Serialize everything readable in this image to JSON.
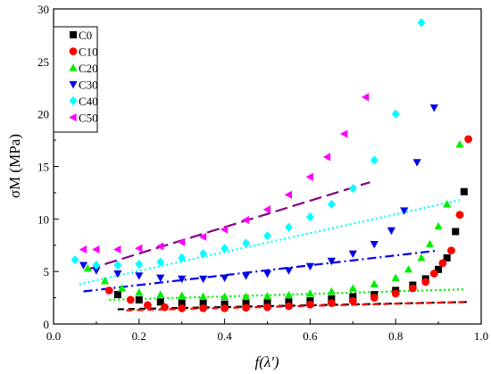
{
  "chart_data": {
    "type": "scatter",
    "xlabel": "f(λ')",
    "ylabel": "σM (MPa)",
    "xlim": [
      0.0,
      1.0
    ],
    "ylim": [
      0,
      30
    ],
    "x_ticks": [
      "0.0",
      "0.2",
      "0.4",
      "0.6",
      "0.8",
      "1.0"
    ],
    "y_ticks": [
      "0",
      "5",
      "10",
      "15",
      "20",
      "25",
      "30"
    ],
    "grid": false,
    "legend_position": "top-left",
    "series": [
      {
        "name": "C0",
        "color": "#000000",
        "marker": "square",
        "x": [
          0.15,
          0.2,
          0.25,
          0.3,
          0.35,
          0.4,
          0.45,
          0.5,
          0.55,
          0.6,
          0.65,
          0.7,
          0.75,
          0.8,
          0.84,
          0.87,
          0.9,
          0.92,
          0.94,
          0.96
        ],
        "y": [
          2.8,
          2.3,
          2.1,
          2.0,
          1.95,
          1.9,
          1.95,
          2.0,
          2.1,
          2.2,
          2.4,
          2.6,
          2.8,
          3.2,
          3.7,
          4.3,
          5.2,
          6.3,
          8.8,
          12.6
        ],
        "fit": {
          "style": "dashed",
          "x": [
            0.15,
            0.97
          ],
          "y": [
            1.4,
            2.1
          ]
        }
      },
      {
        "name": "C10",
        "color": "#ff0000",
        "marker": "circle",
        "x": [
          0.13,
          0.18,
          0.22,
          0.26,
          0.3,
          0.35,
          0.4,
          0.45,
          0.5,
          0.55,
          0.6,
          0.65,
          0.7,
          0.75,
          0.8,
          0.84,
          0.87,
          0.89,
          0.91,
          0.93,
          0.95,
          0.97
        ],
        "y": [
          3.2,
          2.3,
          1.8,
          1.6,
          1.5,
          1.5,
          1.5,
          1.55,
          1.6,
          1.7,
          1.85,
          2.0,
          2.2,
          2.5,
          2.9,
          3.4,
          4.0,
          4.8,
          5.8,
          7.0,
          10.4,
          17.6
        ],
        "fit": {
          "style": "dashed",
          "x": [
            0.17,
            0.97
          ],
          "y": [
            1.3,
            2.1
          ]
        }
      },
      {
        "name": "C20",
        "color": "#00ee00",
        "marker": "triangle-up",
        "x": [
          0.08,
          0.12,
          0.16,
          0.2,
          0.25,
          0.3,
          0.35,
          0.4,
          0.45,
          0.5,
          0.55,
          0.6,
          0.65,
          0.7,
          0.75,
          0.8,
          0.83,
          0.86,
          0.88,
          0.9,
          0.92,
          0.95
        ],
        "y": [
          5.3,
          4.1,
          3.4,
          3.0,
          2.8,
          2.7,
          2.6,
          2.6,
          2.6,
          2.65,
          2.75,
          2.9,
          3.1,
          3.4,
          3.8,
          4.4,
          5.2,
          6.3,
          7.6,
          9.3,
          11.4,
          17.1
        ],
        "fit": {
          "style": "dotted",
          "x": [
            0.13,
            0.96
          ],
          "y": [
            2.3,
            3.3
          ]
        }
      },
      {
        "name": "C30",
        "color": "#0000ee",
        "marker": "triangle-down",
        "x": [
          0.07,
          0.1,
          0.15,
          0.2,
          0.25,
          0.3,
          0.35,
          0.4,
          0.45,
          0.5,
          0.55,
          0.6,
          0.65,
          0.7,
          0.75,
          0.79,
          0.82,
          0.85,
          0.89
        ],
        "y": [
          5.6,
          5.1,
          4.8,
          4.6,
          4.4,
          4.3,
          4.3,
          4.4,
          4.6,
          4.8,
          5.1,
          5.5,
          6.0,
          6.7,
          7.6,
          8.9,
          10.8,
          15.4,
          20.6
        ],
        "fit": {
          "style": "dash-dot",
          "x": [
            0.07,
            0.9
          ],
          "y": [
            3.1,
            7.0
          ]
        }
      },
      {
        "name": "C40",
        "color": "#00ffff",
        "marker": "diamond",
        "x": [
          0.05,
          0.1,
          0.15,
          0.2,
          0.25,
          0.3,
          0.35,
          0.4,
          0.45,
          0.5,
          0.55,
          0.6,
          0.65,
          0.7,
          0.75,
          0.8,
          0.86
        ],
        "y": [
          6.1,
          5.6,
          5.6,
          5.7,
          5.9,
          6.3,
          6.7,
          7.2,
          7.7,
          8.4,
          9.2,
          10.2,
          11.4,
          12.9,
          15.6,
          20.0,
          28.7
        ],
        "fit": {
          "style": "dotted",
          "x": [
            0.06,
            0.95
          ],
          "y": [
            3.8,
            11.8
          ]
        }
      },
      {
        "name": "C50",
        "color": "#ff00ff",
        "marker": "triangle-left",
        "x": [
          0.07,
          0.1,
          0.15,
          0.2,
          0.25,
          0.3,
          0.35,
          0.4,
          0.45,
          0.5,
          0.55,
          0.6,
          0.64,
          0.68,
          0.73
        ],
        "y": [
          7.1,
          7.1,
          7.1,
          7.2,
          7.4,
          7.8,
          8.3,
          9.0,
          9.9,
          10.9,
          12.3,
          14.0,
          15.9,
          18.1,
          21.6
        ],
        "fit": {
          "style": "long-dashed",
          "color": "#800080",
          "x": [
            0.08,
            0.74
          ],
          "y": [
            5.2,
            13.5
          ]
        }
      }
    ]
  }
}
